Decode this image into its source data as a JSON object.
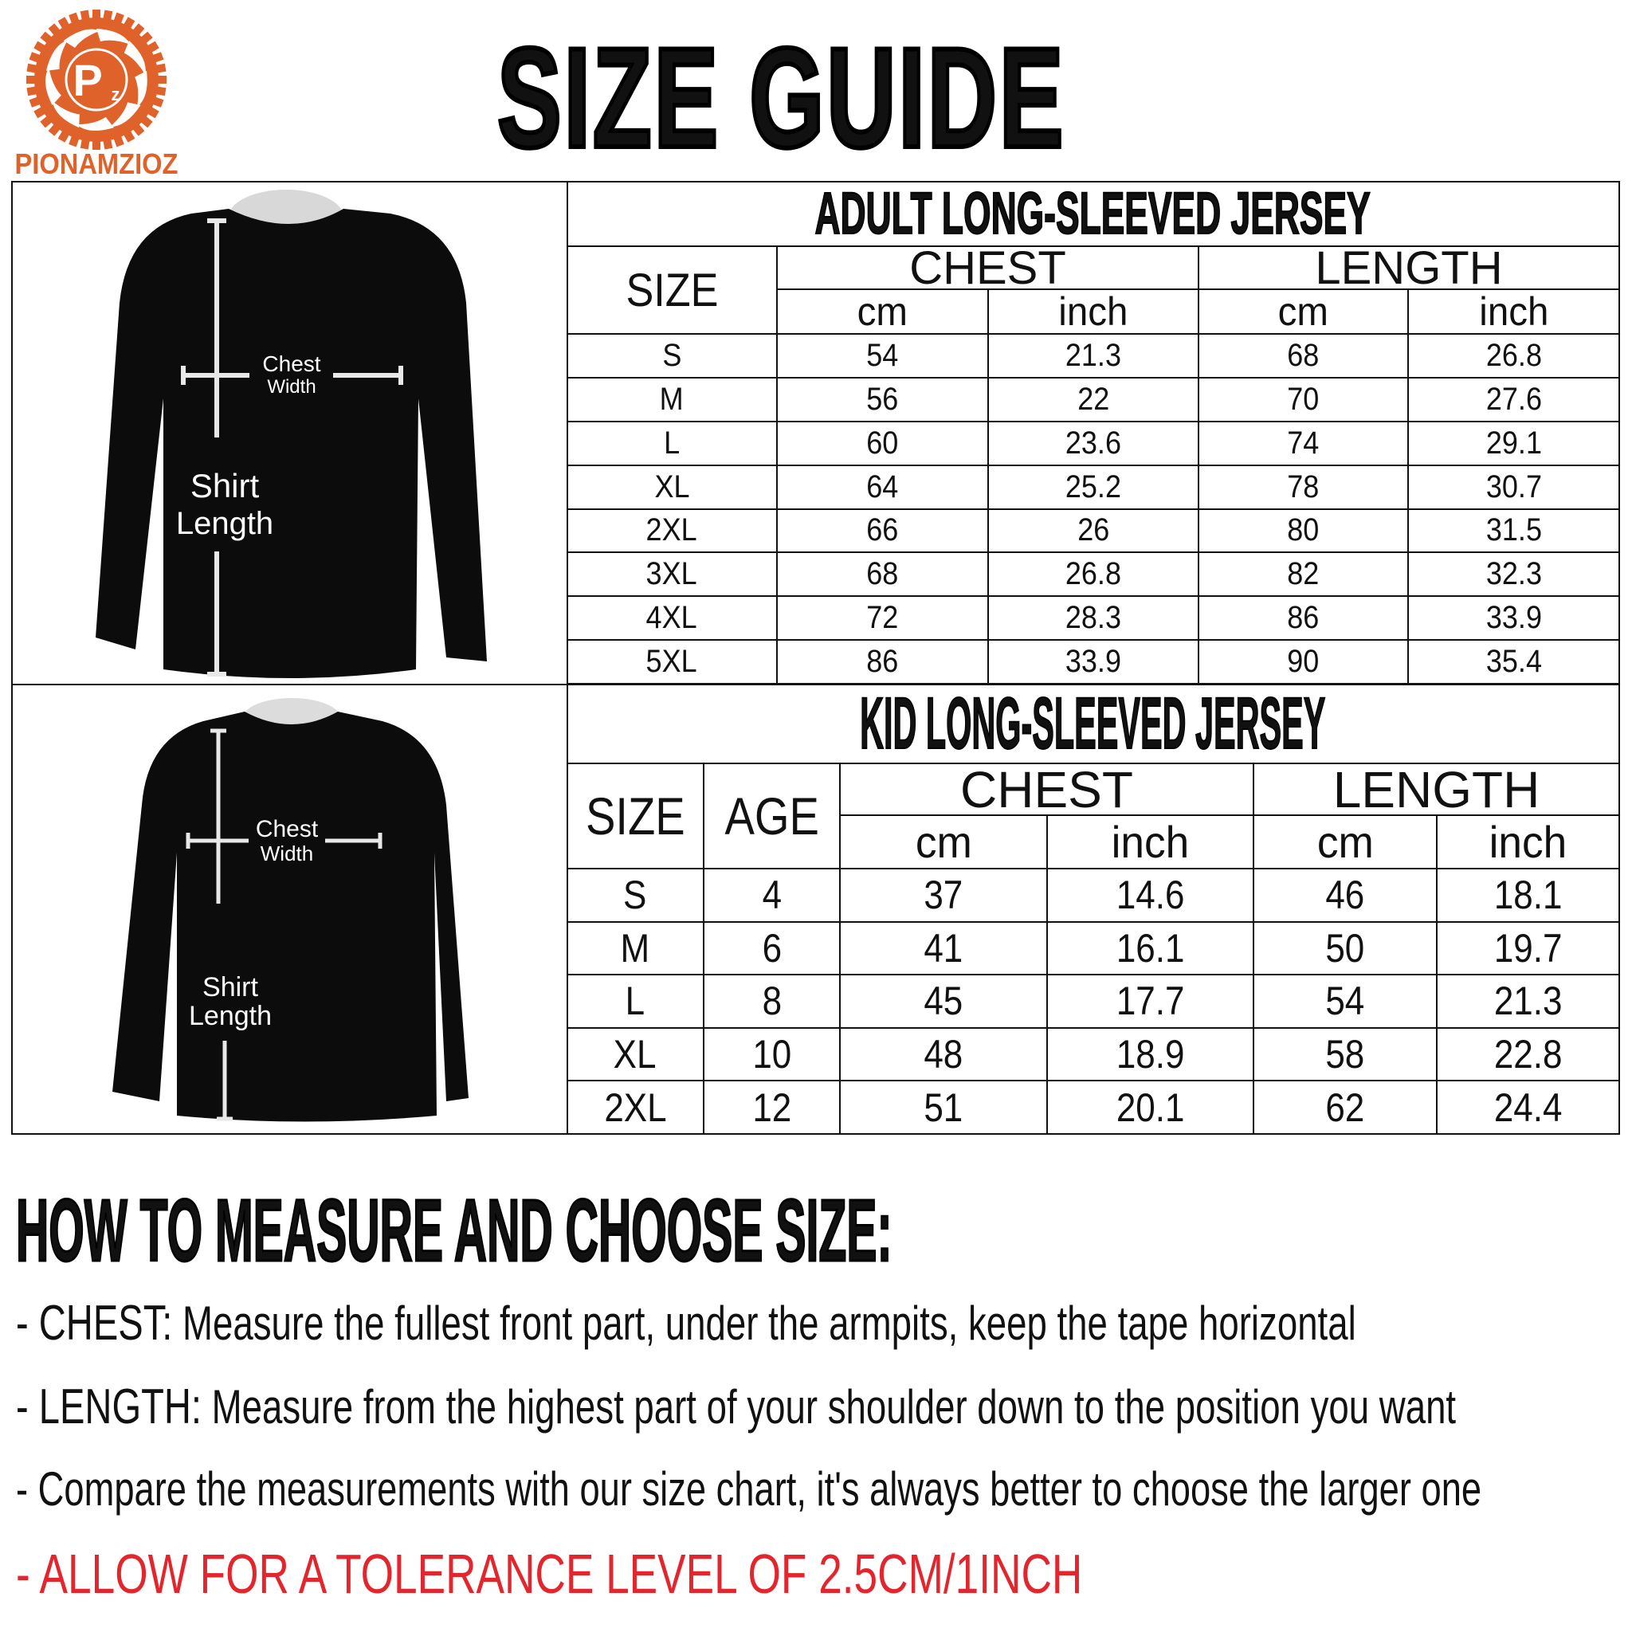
{
  "brand": {
    "name": "PIONAMZIOZ",
    "monogram": "Pz",
    "color": "#e0622b"
  },
  "title": "SIZE GUIDE",
  "adult": {
    "title": "ADULT LONG-SLEEVED JERSEY",
    "headers": {
      "size": "SIZE",
      "chest": "CHEST",
      "length": "LENGTH",
      "cm": "cm",
      "inch": "inch"
    },
    "rows": [
      [
        "S",
        "54",
        "21.3",
        "68",
        "26.8"
      ],
      [
        "M",
        "56",
        "22",
        "70",
        "27.6"
      ],
      [
        "L",
        "60",
        "23.6",
        "74",
        "29.1"
      ],
      [
        "XL",
        "64",
        "25.2",
        "78",
        "30.7"
      ],
      [
        "2XL",
        "66",
        "26",
        "80",
        "31.5"
      ],
      [
        "3XL",
        "68",
        "26.8",
        "82",
        "32.3"
      ],
      [
        "4XL",
        "72",
        "28.3",
        "86",
        "33.9"
      ],
      [
        "5XL",
        "86",
        "33.9",
        "90",
        "35.4"
      ]
    ]
  },
  "kid": {
    "title": "KID LONG-SLEEVED JERSEY",
    "headers": {
      "size": "SIZE",
      "age": "AGE",
      "chest": "CHEST",
      "length": "LENGTH",
      "cm": "cm",
      "inch": "inch"
    },
    "rows": [
      [
        "S",
        "4",
        "37",
        "14.6",
        "46",
        "18.1"
      ],
      [
        "M",
        "6",
        "41",
        "16.1",
        "50",
        "19.7"
      ],
      [
        "L",
        "8",
        "45",
        "17.7",
        "54",
        "21.3"
      ],
      [
        "XL",
        "10",
        "48",
        "18.9",
        "58",
        "22.8"
      ],
      [
        "2XL",
        "12",
        "51",
        "20.1",
        "62",
        "24.4"
      ]
    ]
  },
  "diagram": {
    "chest1": "Chest",
    "chest2": "Width",
    "length1": "Shirt",
    "length2": "Length"
  },
  "howto": {
    "heading": "HOW TO MEASURE AND CHOOSE SIZE:",
    "chest_key": "- CHEST:",
    "chest_text": " Measure the fullest front part, under the armpits, keep the tape horizontal",
    "length_key": "- LENGTH:",
    "length_text": " Measure from the highest part of your shoulder down to the position you want",
    "compare": "- Compare the measurements with our size chart, it's always better to choose the larger one",
    "tolerance": "- ALLOW FOR A TOLERANCE LEVEL OF 2.5CM/1INCH",
    "tolerance_color": "#e3262d"
  }
}
